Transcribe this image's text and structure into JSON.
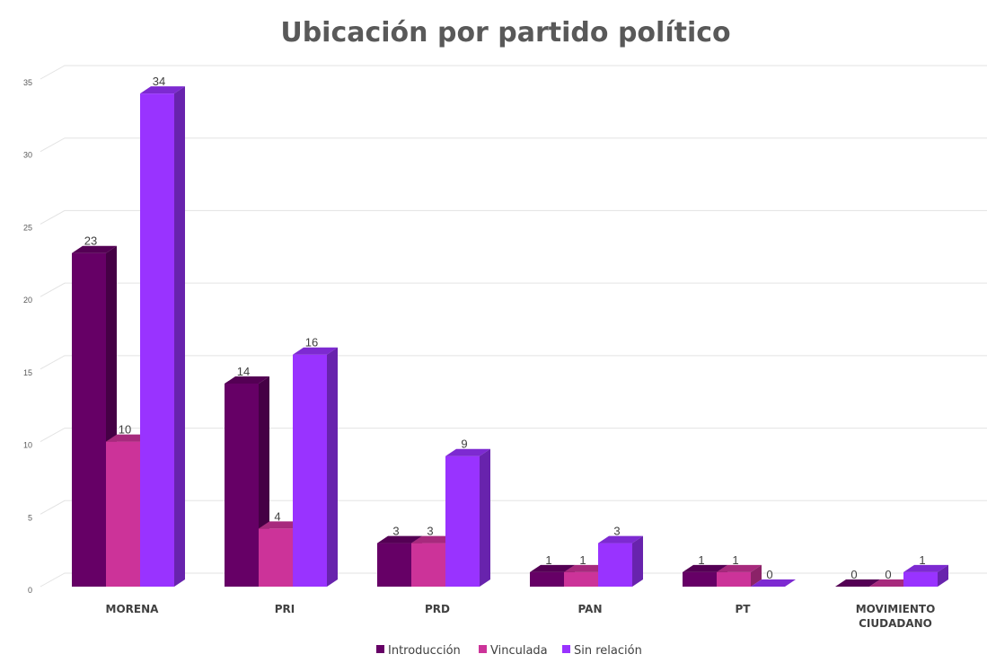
{
  "chart_data": {
    "type": "bar",
    "title": "Ubicación por partido político",
    "categories": [
      "MORENA",
      "PRI",
      "PRD",
      "PAN",
      "PT",
      "MOVIMIENTO CIUDADANO"
    ],
    "series": [
      {
        "name": "Introducción",
        "values": [
          23,
          14,
          3,
          1,
          1,
          0
        ]
      },
      {
        "name": "Vinculada",
        "values": [
          10,
          4,
          3,
          1,
          1,
          0
        ]
      },
      {
        "name": "Sin relación",
        "values": [
          34,
          16,
          9,
          3,
          0,
          1
        ]
      }
    ],
    "ylim": [
      0,
      35
    ],
    "yticks": [
      0,
      5,
      10,
      15,
      20,
      25,
      30,
      35
    ],
    "grid": true,
    "legend_position": "bottom",
    "style": "3d-clustered-column",
    "colors": {
      "Introducción": "#660066",
      "Vinculada": "#cc3399",
      "Sin relación": "#9933ff"
    }
  }
}
